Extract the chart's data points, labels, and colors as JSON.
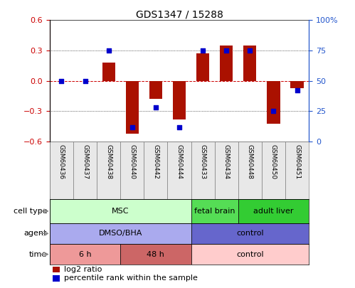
{
  "title": "GDS1347 / 15288",
  "samples": [
    "GSM60436",
    "GSM60437",
    "GSM60438",
    "GSM60440",
    "GSM60442",
    "GSM60444",
    "GSM60433",
    "GSM60434",
    "GSM60448",
    "GSM60450",
    "GSM60451"
  ],
  "log2_ratio": [
    0.0,
    0.0,
    0.18,
    -0.52,
    -0.18,
    -0.38,
    0.27,
    0.35,
    0.35,
    -0.42,
    -0.07
  ],
  "percentile_rank": [
    50,
    50,
    75,
    12,
    28,
    12,
    75,
    75,
    75,
    25,
    42
  ],
  "ylim_left": [
    -0.6,
    0.6
  ],
  "ylim_right": [
    0,
    100
  ],
  "yticks_left": [
    -0.6,
    -0.3,
    0,
    0.3,
    0.6
  ],
  "yticks_right": [
    0,
    25,
    50,
    75,
    100
  ],
  "bar_color": "#aa1100",
  "dot_color": "#0000cc",
  "cell_type_regions": [
    {
      "label": "MSC",
      "start": 0,
      "end": 5,
      "color": "#ccffcc",
      "text_color": "#000000"
    },
    {
      "label": "fetal brain",
      "start": 6,
      "end": 7,
      "color": "#55dd55",
      "text_color": "#000000"
    },
    {
      "label": "adult liver",
      "start": 8,
      "end": 10,
      "color": "#33cc33",
      "text_color": "#000000"
    }
  ],
  "agent_regions": [
    {
      "label": "DMSO/BHA",
      "start": 0,
      "end": 5,
      "color": "#aaaaee",
      "text_color": "#000000"
    },
    {
      "label": "control",
      "start": 6,
      "end": 10,
      "color": "#6666cc",
      "text_color": "#000000"
    }
  ],
  "time_regions": [
    {
      "label": "6 h",
      "start": 0,
      "end": 2,
      "color": "#ee9999",
      "text_color": "#000000"
    },
    {
      "label": "48 h",
      "start": 3,
      "end": 5,
      "color": "#cc6666",
      "text_color": "#000000"
    },
    {
      "label": "control",
      "start": 6,
      "end": 10,
      "color": "#ffcccc",
      "text_color": "#000000"
    }
  ],
  "row_labels": [
    "cell type",
    "agent",
    "time"
  ],
  "legend_bar_label": "log2 ratio",
  "legend_dot_label": "percentile rank within the sample",
  "bar_width": 0.55
}
